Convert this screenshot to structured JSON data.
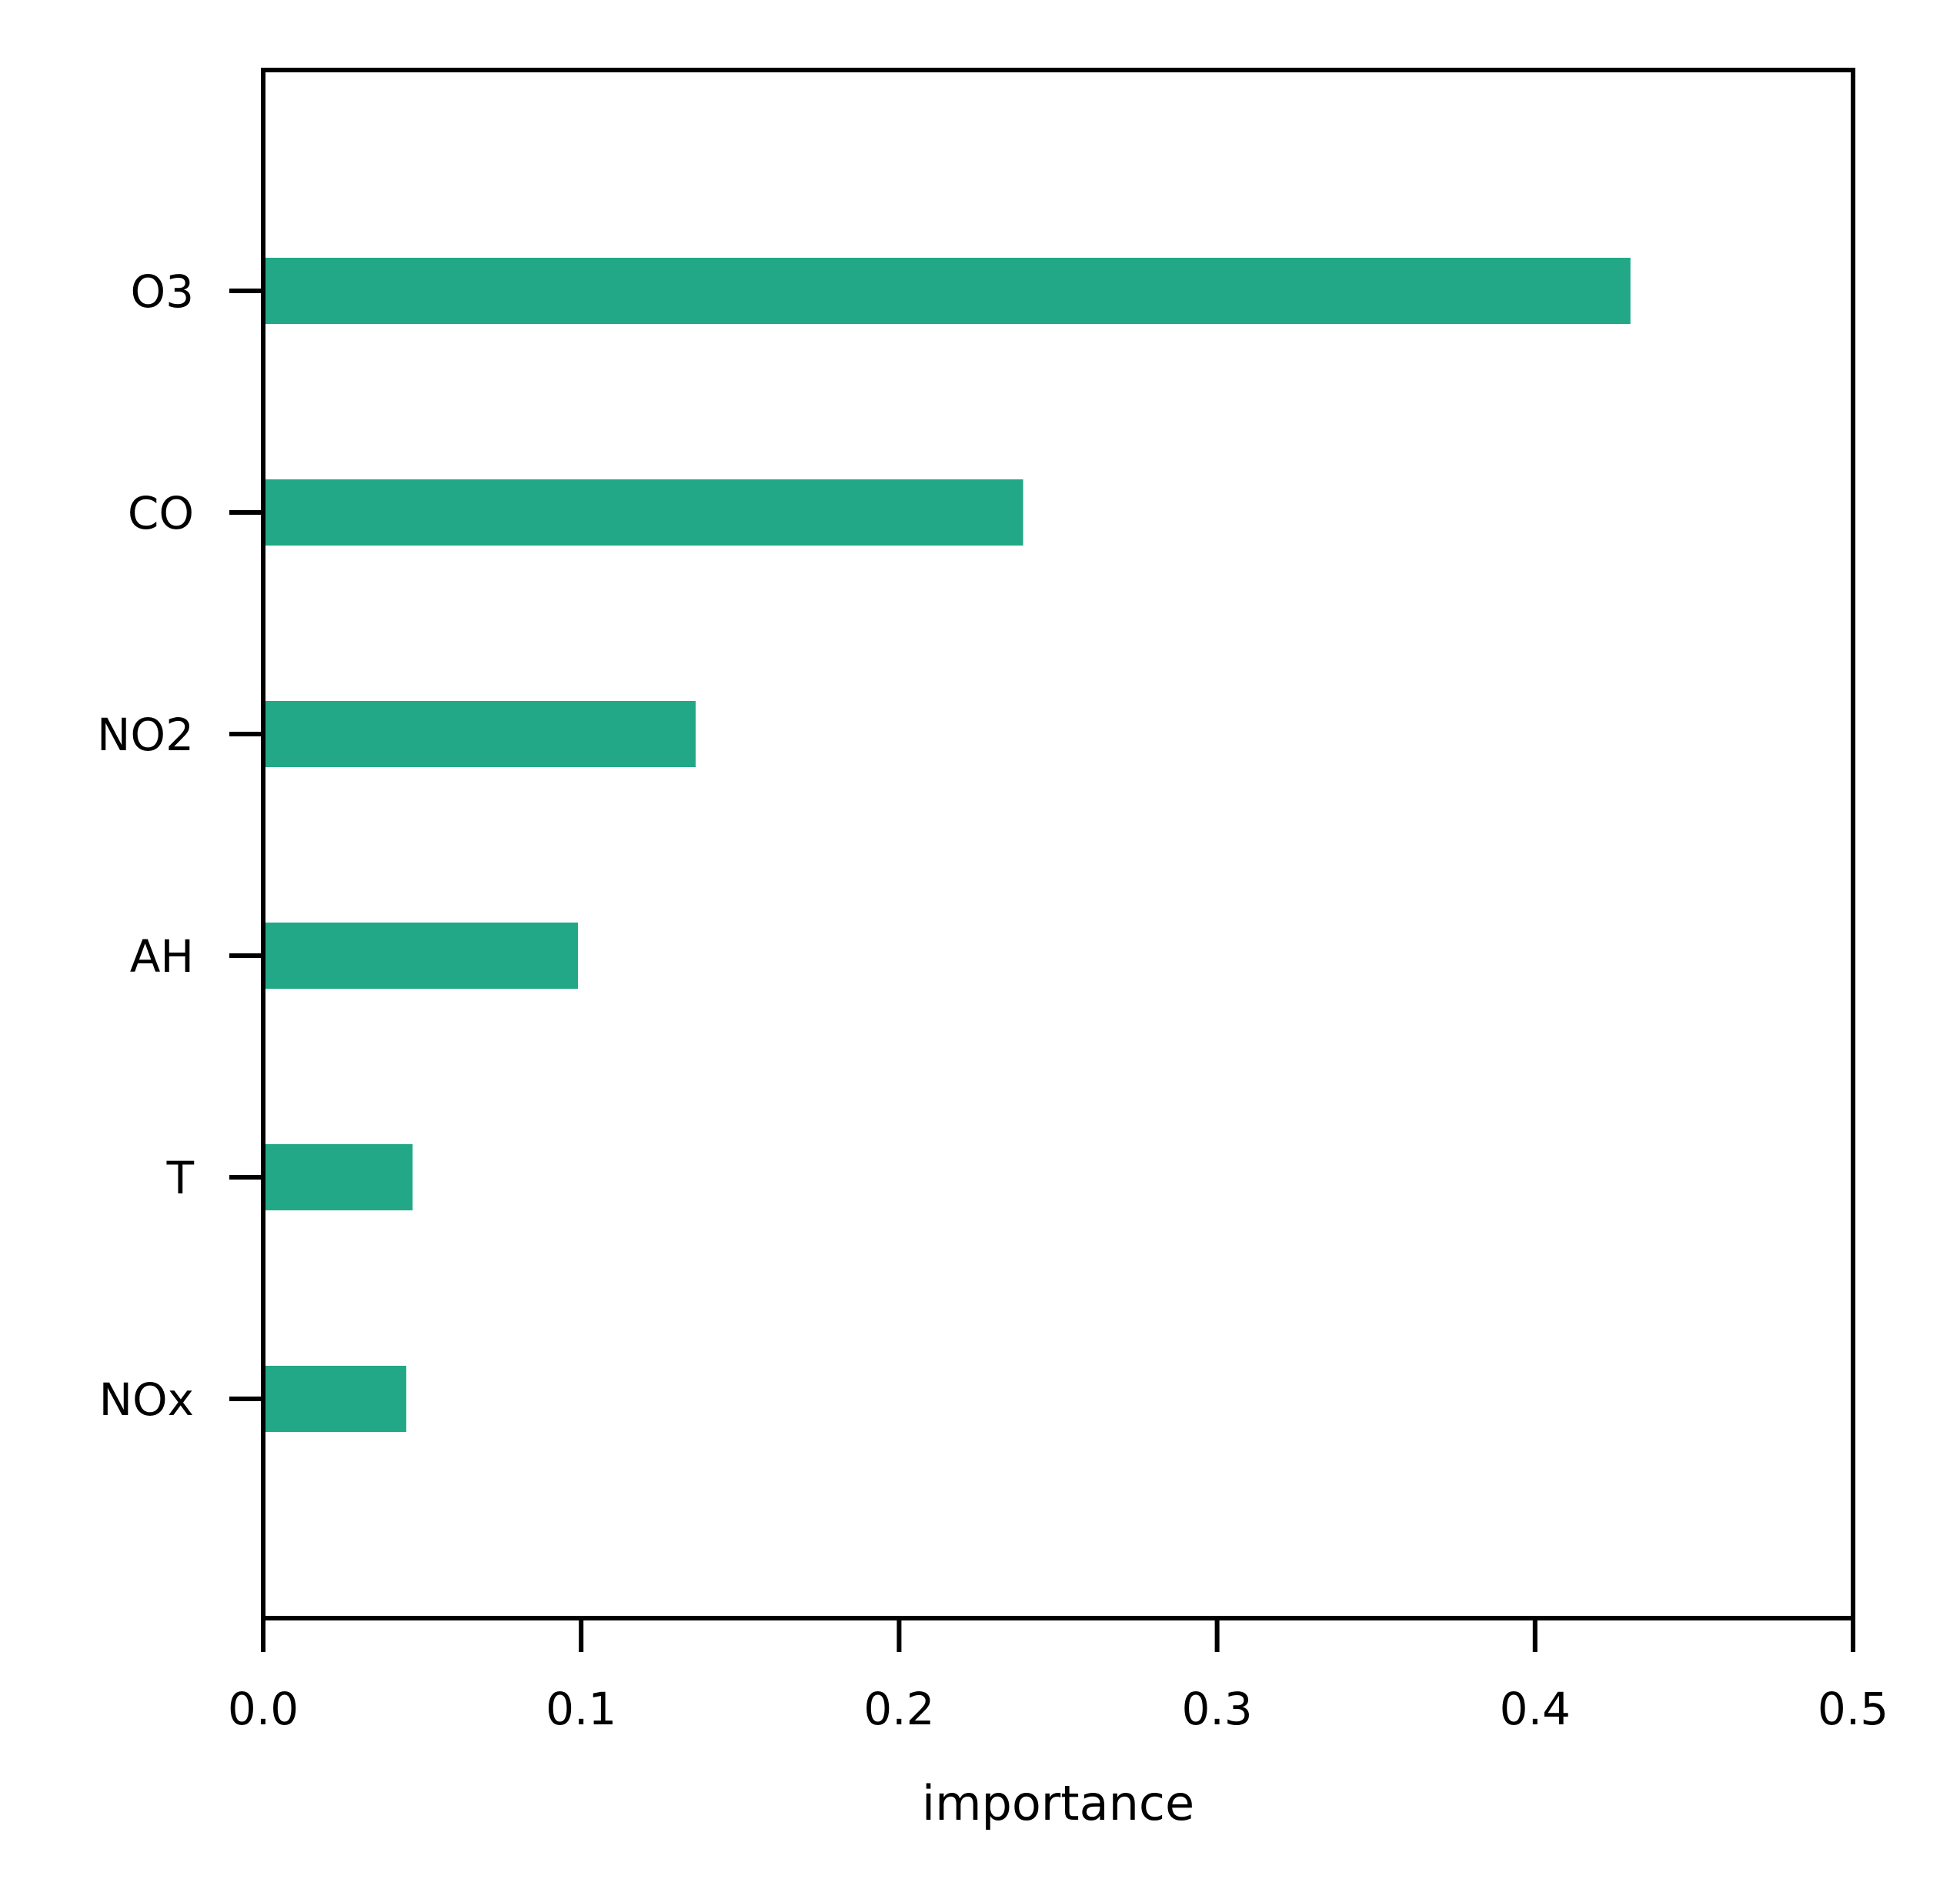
{
  "chart_data": {
    "type": "bar",
    "orientation": "horizontal",
    "title": "",
    "xlabel": "importance",
    "ylabel": "",
    "categories": [
      "O3",
      "CO",
      "NO2",
      "AH",
      "T",
      "NOx"
    ],
    "values": [
      0.43,
      0.239,
      0.136,
      0.099,
      0.047,
      0.045
    ],
    "xlim": [
      0.0,
      0.5
    ],
    "xticks": [
      "0.0",
      "0.1",
      "0.2",
      "0.3",
      "0.4",
      "0.5"
    ],
    "grid": false,
    "legend": "none",
    "bar_color": "#22a887"
  }
}
